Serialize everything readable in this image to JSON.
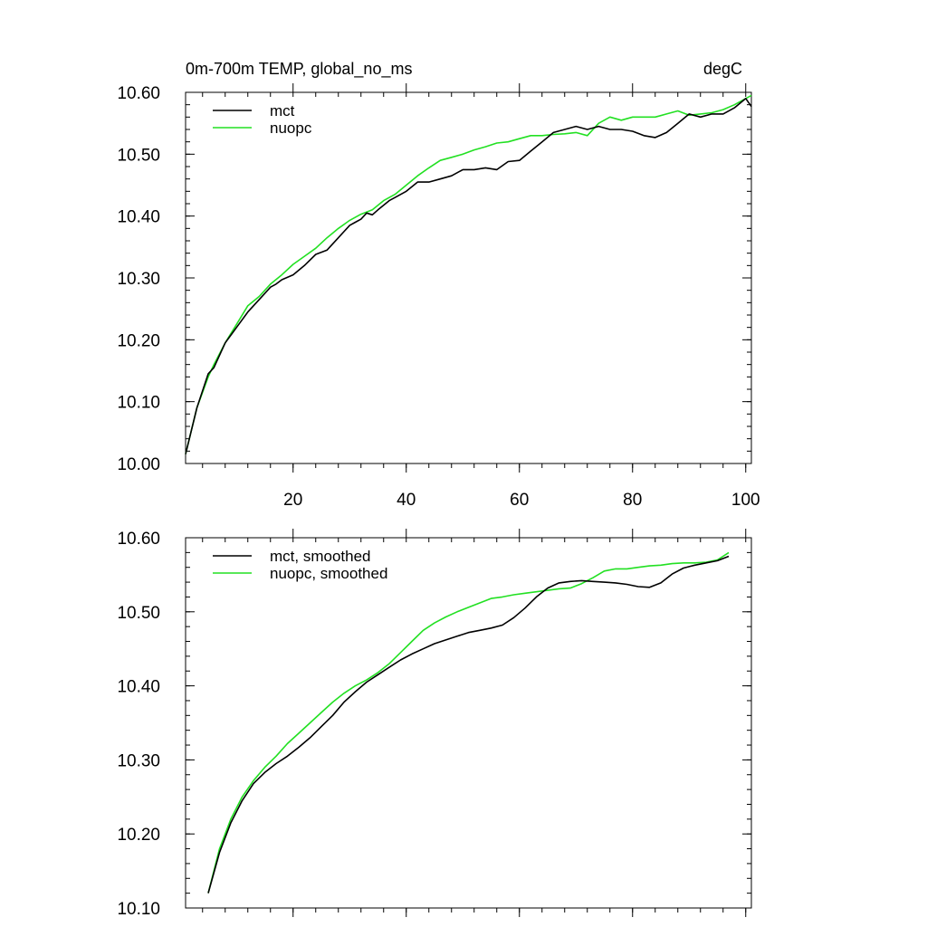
{
  "chart_data": [
    {
      "type": "line",
      "title_left": "0m-700m TEMP, global_no_ms",
      "title_right": "degC",
      "xlabel": "",
      "ylabel": "",
      "xlim": [
        1,
        101
      ],
      "ylim": [
        10.0,
        10.6
      ],
      "xticks": [
        20,
        40,
        60,
        80,
        100
      ],
      "xtick_labels": [
        "20",
        "40",
        "60",
        "80",
        "100"
      ],
      "yticks": [
        10.0,
        10.1,
        10.2,
        10.3,
        10.4,
        10.5,
        10.6
      ],
      "ytick_labels": [
        "10.00",
        "10.10",
        "10.20",
        "10.30",
        "10.40",
        "10.50",
        "10.60"
      ],
      "grid": false,
      "legend_position": "top-left",
      "series": [
        {
          "name": "mct",
          "color": "#000000",
          "points": [
            [
              1,
              10.015
            ],
            [
              3,
              10.09
            ],
            [
              5,
              10.145
            ],
            [
              6,
              10.155
            ],
            [
              8,
              10.195
            ],
            [
              10,
              10.22
            ],
            [
              12,
              10.245
            ],
            [
              14,
              10.265
            ],
            [
              16,
              10.285
            ],
            [
              17,
              10.29
            ],
            [
              18,
              10.297
            ],
            [
              20,
              10.305
            ],
            [
              22,
              10.32
            ],
            [
              24,
              10.338
            ],
            [
              26,
              10.345
            ],
            [
              28,
              10.365
            ],
            [
              30,
              10.385
            ],
            [
              31,
              10.39
            ],
            [
              32,
              10.395
            ],
            [
              33,
              10.405
            ],
            [
              34,
              10.402
            ],
            [
              35,
              10.41
            ],
            [
              37,
              10.425
            ],
            [
              38,
              10.43
            ],
            [
              40,
              10.44
            ],
            [
              42,
              10.455
            ],
            [
              44,
              10.455
            ],
            [
              46,
              10.46
            ],
            [
              48,
              10.465
            ],
            [
              50,
              10.475
            ],
            [
              52,
              10.475
            ],
            [
              54,
              10.478
            ],
            [
              56,
              10.475
            ],
            [
              58,
              10.488
            ],
            [
              60,
              10.49
            ],
            [
              62,
              10.505
            ],
            [
              64,
              10.52
            ],
            [
              66,
              10.535
            ],
            [
              68,
              10.54
            ],
            [
              70,
              10.545
            ],
            [
              72,
              10.54
            ],
            [
              74,
              10.545
            ],
            [
              76,
              10.54
            ],
            [
              78,
              10.54
            ],
            [
              80,
              10.537
            ],
            [
              82,
              10.53
            ],
            [
              84,
              10.527
            ],
            [
              86,
              10.535
            ],
            [
              88,
              10.55
            ],
            [
              90,
              10.565
            ],
            [
              92,
              10.56
            ],
            [
              94,
              10.565
            ],
            [
              96,
              10.565
            ],
            [
              98,
              10.575
            ],
            [
              100,
              10.59
            ],
            [
              101,
              10.577
            ]
          ]
        },
        {
          "name": "nuopc",
          "color": "#22e022",
          "points": [
            [
              1,
              10.015
            ],
            [
              3,
              10.09
            ],
            [
              5,
              10.14
            ],
            [
              6,
              10.16
            ],
            [
              8,
              10.195
            ],
            [
              10,
              10.225
            ],
            [
              12,
              10.255
            ],
            [
              14,
              10.27
            ],
            [
              16,
              10.29
            ],
            [
              18,
              10.305
            ],
            [
              20,
              10.322
            ],
            [
              22,
              10.335
            ],
            [
              24,
              10.348
            ],
            [
              26,
              10.365
            ],
            [
              28,
              10.38
            ],
            [
              30,
              10.393
            ],
            [
              32,
              10.403
            ],
            [
              34,
              10.41
            ],
            [
              36,
              10.425
            ],
            [
              38,
              10.435
            ],
            [
              40,
              10.45
            ],
            [
              42,
              10.465
            ],
            [
              44,
              10.478
            ],
            [
              46,
              10.49
            ],
            [
              48,
              10.495
            ],
            [
              50,
              10.5
            ],
            [
              52,
              10.507
            ],
            [
              54,
              10.512
            ],
            [
              56,
              10.518
            ],
            [
              58,
              10.52
            ],
            [
              60,
              10.525
            ],
            [
              62,
              10.53
            ],
            [
              64,
              10.53
            ],
            [
              66,
              10.532
            ],
            [
              68,
              10.533
            ],
            [
              70,
              10.535
            ],
            [
              72,
              10.53
            ],
            [
              74,
              10.55
            ],
            [
              76,
              10.56
            ],
            [
              78,
              10.555
            ],
            [
              80,
              10.56
            ],
            [
              82,
              10.56
            ],
            [
              84,
              10.56
            ],
            [
              86,
              10.565
            ],
            [
              88,
              10.57
            ],
            [
              90,
              10.563
            ],
            [
              92,
              10.565
            ],
            [
              94,
              10.567
            ],
            [
              96,
              10.572
            ],
            [
              98,
              10.58
            ],
            [
              101,
              10.595
            ]
          ]
        }
      ]
    },
    {
      "type": "line",
      "title_left": "",
      "title_right": "",
      "xlabel": "",
      "ylabel": "",
      "xlim": [
        1,
        101
      ],
      "ylim": [
        10.1,
        10.6
      ],
      "xticks": [
        20,
        40,
        60,
        80,
        100
      ],
      "xtick_labels": [],
      "yticks": [
        10.1,
        10.2,
        10.3,
        10.4,
        10.5,
        10.6
      ],
      "ytick_labels": [
        "10.10",
        "10.20",
        "10.30",
        "10.40",
        "10.50",
        "10.60"
      ],
      "grid": false,
      "legend_position": "top-left",
      "series": [
        {
          "name": "mct, smoothed",
          "color": "#000000",
          "points": [
            [
              5,
              10.12
            ],
            [
              7,
              10.175
            ],
            [
              9,
              10.215
            ],
            [
              11,
              10.245
            ],
            [
              13,
              10.268
            ],
            [
              15,
              10.283
            ],
            [
              17,
              10.295
            ],
            [
              19,
              10.305
            ],
            [
              21,
              10.317
            ],
            [
              23,
              10.33
            ],
            [
              25,
              10.345
            ],
            [
              27,
              10.36
            ],
            [
              29,
              10.378
            ],
            [
              31,
              10.392
            ],
            [
              33,
              10.405
            ],
            [
              35,
              10.415
            ],
            [
              37,
              10.425
            ],
            [
              39,
              10.435
            ],
            [
              41,
              10.443
            ],
            [
              43,
              10.45
            ],
            [
              45,
              10.457
            ],
            [
              47,
              10.462
            ],
            [
              49,
              10.467
            ],
            [
              51,
              10.472
            ],
            [
              53,
              10.475
            ],
            [
              55,
              10.478
            ],
            [
              57,
              10.482
            ],
            [
              59,
              10.492
            ],
            [
              61,
              10.505
            ],
            [
              63,
              10.52
            ],
            [
              65,
              10.532
            ],
            [
              67,
              10.539
            ],
            [
              69,
              10.541
            ],
            [
              71,
              10.542
            ],
            [
              73,
              10.541
            ],
            [
              75,
              10.54
            ],
            [
              77,
              10.539
            ],
            [
              79,
              10.537
            ],
            [
              81,
              10.534
            ],
            [
              83,
              10.533
            ],
            [
              85,
              10.539
            ],
            [
              87,
              10.551
            ],
            [
              89,
              10.559
            ],
            [
              91,
              10.563
            ],
            [
              93,
              10.566
            ],
            [
              95,
              10.569
            ],
            [
              97,
              10.575
            ]
          ]
        },
        {
          "name": "nuopc, smoothed",
          "color": "#22e022",
          "points": [
            [
              5,
              10.12
            ],
            [
              7,
              10.18
            ],
            [
              9,
              10.22
            ],
            [
              11,
              10.25
            ],
            [
              13,
              10.272
            ],
            [
              15,
              10.29
            ],
            [
              17,
              10.305
            ],
            [
              19,
              10.322
            ],
            [
              21,
              10.336
            ],
            [
              23,
              10.35
            ],
            [
              25,
              10.364
            ],
            [
              27,
              10.378
            ],
            [
              29,
              10.39
            ],
            [
              31,
              10.4
            ],
            [
              33,
              10.408
            ],
            [
              35,
              10.418
            ],
            [
              37,
              10.43
            ],
            [
              39,
              10.445
            ],
            [
              41,
              10.46
            ],
            [
              43,
              10.475
            ],
            [
              45,
              10.485
            ],
            [
              47,
              10.493
            ],
            [
              49,
              10.5
            ],
            [
              51,
              10.506
            ],
            [
              53,
              10.512
            ],
            [
              55,
              10.518
            ],
            [
              57,
              10.52
            ],
            [
              59,
              10.523
            ],
            [
              61,
              10.525
            ],
            [
              63,
              10.527
            ],
            [
              65,
              10.529
            ],
            [
              67,
              10.531
            ],
            [
              69,
              10.532
            ],
            [
              71,
              10.538
            ],
            [
              73,
              10.546
            ],
            [
              75,
              10.555
            ],
            [
              77,
              10.558
            ],
            [
              79,
              10.558
            ],
            [
              81,
              10.56
            ],
            [
              83,
              10.562
            ],
            [
              85,
              10.563
            ],
            [
              87,
              10.565
            ],
            [
              89,
              10.566
            ],
            [
              91,
              10.566
            ],
            [
              93,
              10.567
            ],
            [
              95,
              10.57
            ],
            [
              97,
              10.58
            ]
          ]
        }
      ]
    }
  ]
}
